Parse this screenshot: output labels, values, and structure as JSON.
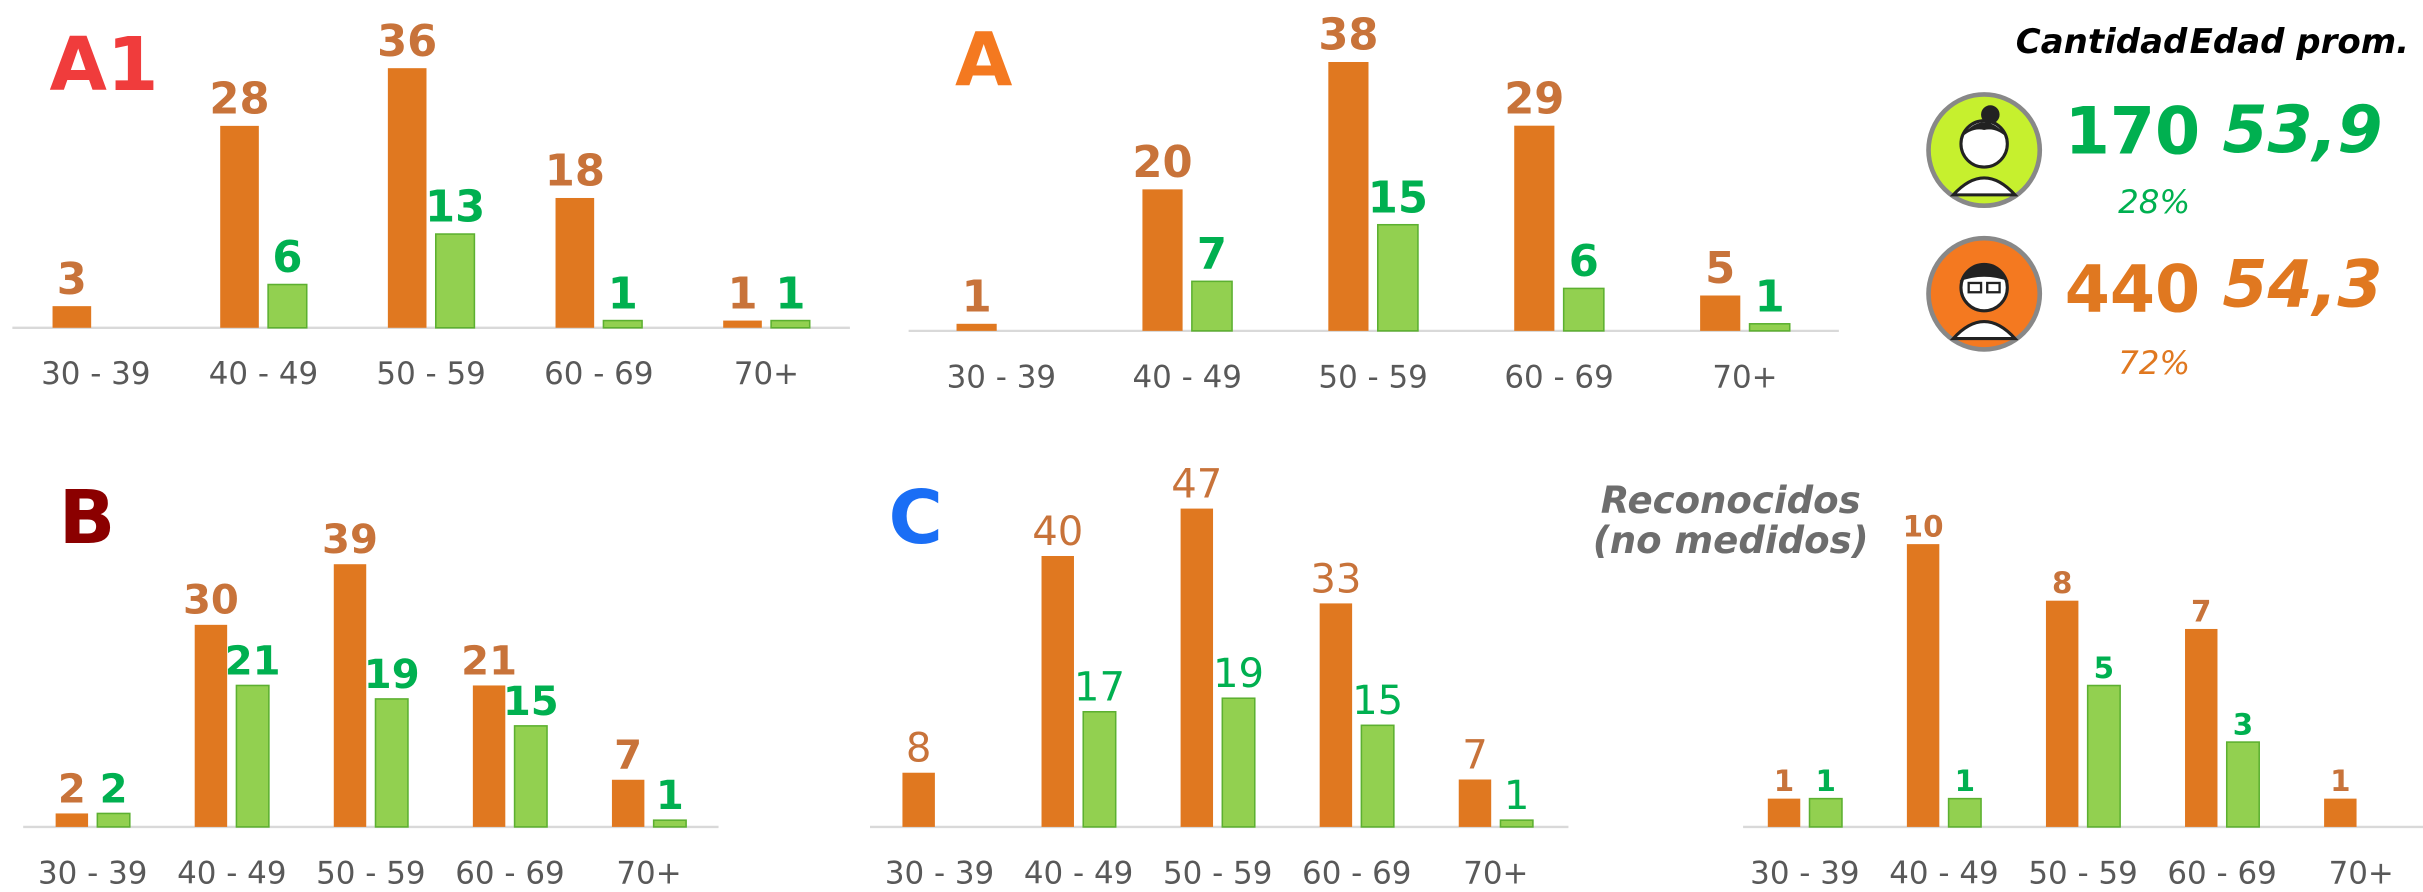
{
  "chart_data": [
    {
      "type": "bar",
      "title": "A1",
      "title_color": "#f03c3c",
      "categories": [
        "30 - 39",
        "40 - 49",
        "50 - 59",
        "60 - 69",
        "70+"
      ],
      "series": [
        {
          "color": "#e07820",
          "label_color": "#c8733a",
          "values": [
            3,
            28,
            36,
            18,
            1
          ]
        },
        {
          "color": "#92d050",
          "label_color": "#00b050",
          "values": [
            null,
            6,
            13,
            1,
            1
          ]
        }
      ]
    },
    {
      "type": "bar",
      "title": "A",
      "title_color": "#f47920",
      "categories": [
        "30 - 39",
        "40 - 49",
        "50 - 59",
        "60 - 69",
        "70+"
      ],
      "series": [
        {
          "color": "#e07820",
          "label_color": "#c8733a",
          "values": [
            1,
            20,
            38,
            29,
            5
          ]
        },
        {
          "color": "#92d050",
          "label_color": "#00b050",
          "values": [
            null,
            7,
            15,
            6,
            1
          ]
        }
      ]
    },
    {
      "type": "bar",
      "title": "B",
      "title_color": "#8b0000",
      "categories": [
        "30 - 39",
        "40 - 49",
        "50 - 59",
        "60 - 69",
        "70+"
      ],
      "series": [
        {
          "color": "#e07820",
          "label_color": "#c8733a",
          "values": [
            2,
            30,
            39,
            21,
            7
          ]
        },
        {
          "color": "#92d050",
          "label_color": "#00b050",
          "values": [
            2,
            21,
            19,
            15,
            1
          ]
        }
      ]
    },
    {
      "type": "bar",
      "title": "C",
      "title_color": "#1a6ef5",
      "categories": [
        "30 - 39",
        "40 - 49",
        "50 - 59",
        "60 - 69",
        "70+"
      ],
      "series": [
        {
          "color": "#e07820",
          "label_color": "#c8733a",
          "values": [
            8,
            40,
            47,
            33,
            7
          ]
        },
        {
          "color": "#92d050",
          "label_color": "#00b050",
          "values": [
            null,
            17,
            19,
            15,
            1
          ]
        }
      ]
    },
    {
      "type": "bar",
      "title": [
        "Reconocidos",
        "(no medidos)"
      ],
      "title_color": "#6d6d6d",
      "categories": [
        "30 - 39",
        "40 - 49",
        "50 - 59",
        "60 - 69",
        "70+"
      ],
      "series": [
        {
          "color": "#e07820",
          "label_color": "#c8733a",
          "values": [
            1,
            10,
            8,
            7,
            1
          ]
        },
        {
          "color": "#92d050",
          "label_color": "#00b050",
          "values": [
            1,
            1,
            5,
            3,
            null
          ]
        }
      ]
    }
  ],
  "summary": {
    "headers": [
      "Cantidad",
      "Edad prom."
    ],
    "rows": [
      {
        "count": "170",
        "percent": "28%",
        "age": "53,9",
        "color": "#00b050"
      },
      {
        "count": "440",
        "percent": "72%",
        "age": "54,3",
        "color": "#e07820"
      }
    ]
  }
}
